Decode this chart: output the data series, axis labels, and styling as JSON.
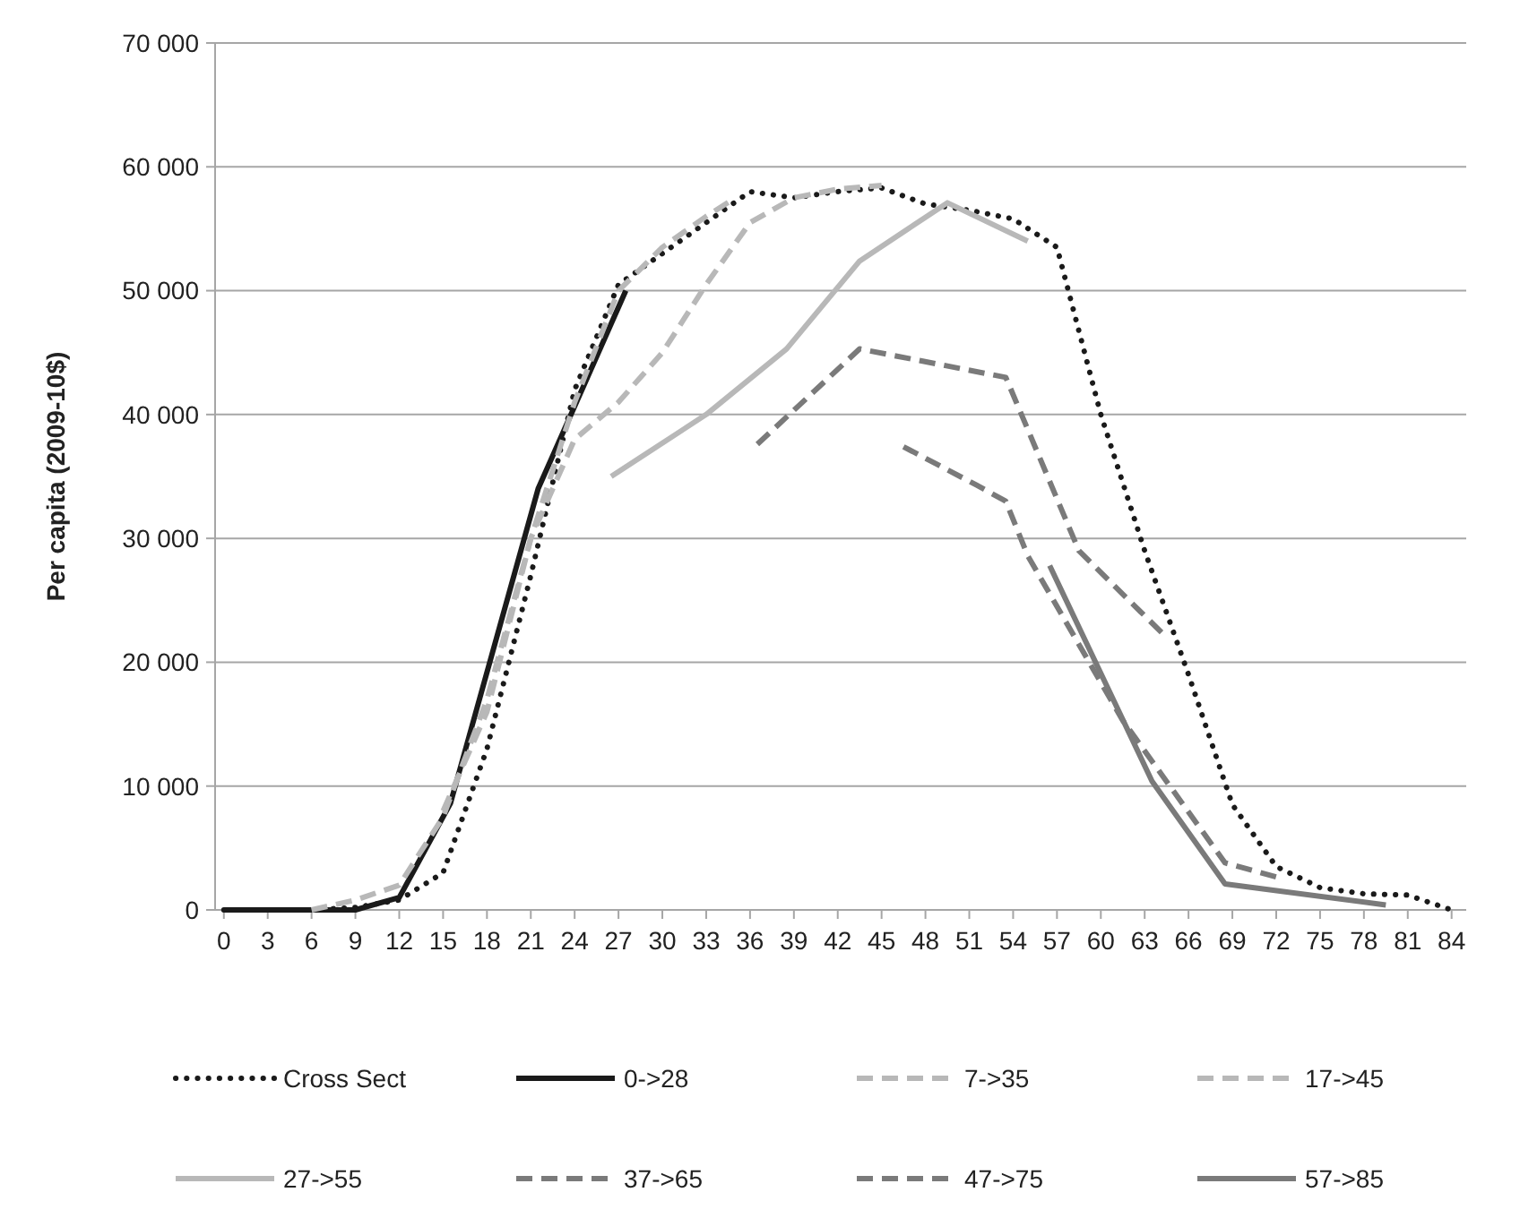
{
  "chart_data": {
    "type": "line",
    "ylabel": "Per capita (2009-10$)",
    "xlim": [
      -0.6,
      85
    ],
    "xticks": [
      0,
      3,
      6,
      9,
      12,
      15,
      18,
      21,
      24,
      27,
      30,
      33,
      36,
      39,
      42,
      45,
      48,
      51,
      54,
      57,
      60,
      63,
      66,
      69,
      72,
      75,
      78,
      81,
      84
    ],
    "ylim": [
      0,
      70000
    ],
    "yticks": [
      {
        "value": 0,
        "label": "0"
      },
      {
        "value": 10000,
        "label": "10 000"
      },
      {
        "value": 20000,
        "label": "20 000"
      },
      {
        "value": 30000,
        "label": "30 000"
      },
      {
        "value": 40000,
        "label": "40 000"
      },
      {
        "value": 50000,
        "label": "50 000"
      },
      {
        "value": 60000,
        "label": "60 000"
      },
      {
        "value": 70000,
        "label": "70 000"
      }
    ],
    "grid": "y",
    "legend": "bottom",
    "series": [
      {
        "name": "Cross Sect",
        "color": "#1a1a1a",
        "line_style": "dotted",
        "x": [
          0,
          3,
          6,
          9,
          12,
          15,
          18,
          21,
          24,
          27,
          30,
          33,
          36,
          39,
          42,
          45,
          48,
          51,
          54,
          57,
          60,
          63,
          66,
          69,
          72,
          75,
          78,
          81,
          84
        ],
        "values": [
          0,
          0,
          0,
          200,
          800,
          3000,
          13000,
          27000,
          42000,
          50500,
          53000,
          55500,
          58000,
          57500,
          58000,
          58300,
          57000,
          56500,
          55800,
          53500,
          40000,
          29000,
          19000,
          8500,
          3500,
          1800,
          1300,
          1200,
          0
        ]
      },
      {
        "name": "0->28",
        "color": "#1a1a1a",
        "line_style": "solid",
        "x": [
          0,
          3,
          6,
          9,
          12,
          15.5,
          21.5,
          27.5
        ],
        "values": [
          0,
          0,
          0,
          0,
          1000,
          8600,
          34000,
          50000
        ]
      },
      {
        "name": "7->35",
        "color": "#b8b8b8",
        "line_style": "dashed",
        "x": [
          6,
          9,
          12,
          15,
          18,
          21,
          24,
          27,
          30,
          33,
          35
        ],
        "values": [
          0,
          800,
          2000,
          7500,
          17000,
          30000,
          41000,
          50000,
          53500,
          56000,
          57500
        ]
      },
      {
        "name": "17->45",
        "color": "#b8b8b8",
        "line_style": "dashed",
        "x": [
          15,
          18,
          21,
          24,
          27,
          30,
          33,
          36,
          39,
          42,
          45
        ],
        "values": [
          8000,
          16000,
          30000,
          38000,
          41000,
          45000,
          50500,
          55500,
          57500,
          58200,
          58500
        ]
      },
      {
        "name": "27->55",
        "color": "#b8b8b8",
        "line_style": "solid",
        "x": [
          26.5,
          33,
          38.5,
          43.5,
          49.5,
          55
        ],
        "values": [
          35000,
          40000,
          45300,
          52400,
          57100,
          54000
        ]
      },
      {
        "name": "37->65",
        "color": "#7a7a7a",
        "line_style": "dashed",
        "x": [
          36.5,
          43.5,
          53.5,
          58.5,
          64.5
        ],
        "values": [
          37600,
          45300,
          43000,
          29000,
          22000
        ]
      },
      {
        "name": "47->75",
        "color": "#7a7a7a",
        "line_style": "dashed",
        "x": [
          46.5,
          51.5,
          53.5,
          55,
          61.5,
          68.5,
          72.5
        ],
        "values": [
          37400,
          34300,
          33000,
          28600,
          15300,
          3800,
          2500
        ]
      },
      {
        "name": "57->85",
        "color": "#7a7a7a",
        "line_style": "solid",
        "x": [
          56.5,
          63.5,
          68.5,
          79.5
        ],
        "values": [
          27800,
          10400,
          2100,
          400
        ]
      }
    ]
  }
}
